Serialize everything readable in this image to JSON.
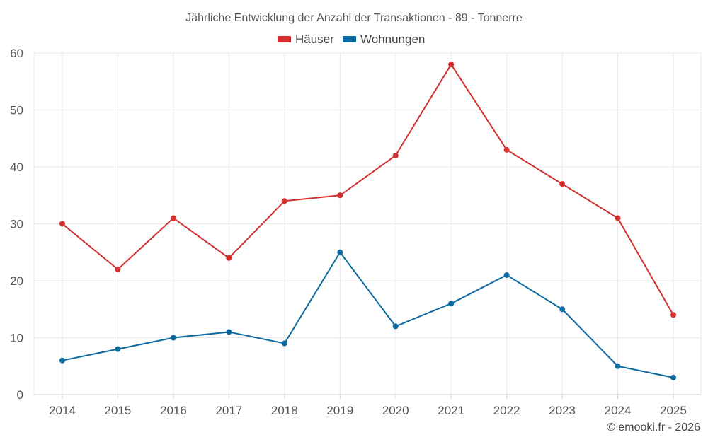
{
  "chart_data": {
    "type": "line",
    "title": "Jährliche Entwicklung der Anzahl der Transaktionen - 89 - Tonnerre",
    "categories": [
      "2014",
      "2015",
      "2016",
      "2017",
      "2018",
      "2019",
      "2020",
      "2021",
      "2022",
      "2023",
      "2024",
      "2025"
    ],
    "series": [
      {
        "name": "Häuser",
        "color": "#d32f2f",
        "values": [
          30,
          22,
          31,
          24,
          34,
          35,
          42,
          58,
          43,
          37,
          31,
          14
        ]
      },
      {
        "name": "Wohnungen",
        "color": "#0d6aa0",
        "values": [
          6,
          8,
          10,
          11,
          9,
          25,
          12,
          16,
          21,
          15,
          5,
          3
        ]
      }
    ],
    "xlabel": "",
    "ylabel": "",
    "ylim": [
      0,
      60
    ],
    "yticks": [
      0,
      10,
      20,
      30,
      40,
      50,
      60
    ],
    "grid": true,
    "legend_position": "top-center"
  },
  "credit": "© emooki.fr - 2026"
}
